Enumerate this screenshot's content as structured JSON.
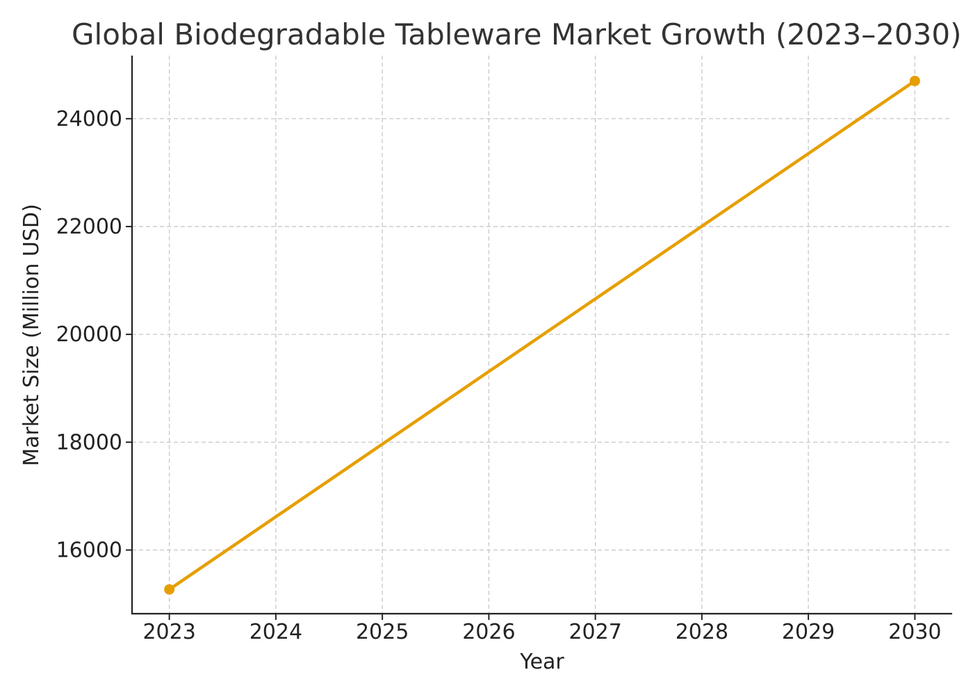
{
  "chart_data": {
    "type": "line",
    "title": "Global Biodegradable Tableware Market Growth (2023–2030)",
    "xlabel": "Year",
    "ylabel": "Market Size (Million USD)",
    "x": [
      2023,
      2030
    ],
    "xticks": [
      "2023",
      "2024",
      "2025",
      "2026",
      "2027",
      "2028",
      "2029",
      "2030"
    ],
    "yticks": [
      16000,
      18000,
      20000,
      22000,
      24000
    ],
    "xlim": [
      2022.65,
      2030.35
    ],
    "ylim": [
      14820,
      25170
    ],
    "grid": true,
    "series": [
      {
        "values": [
          15270,
          24700
        ],
        "color": "#E69F00"
      }
    ],
    "axis_color": "#222222",
    "grid_color": "#c8c8c8"
  }
}
